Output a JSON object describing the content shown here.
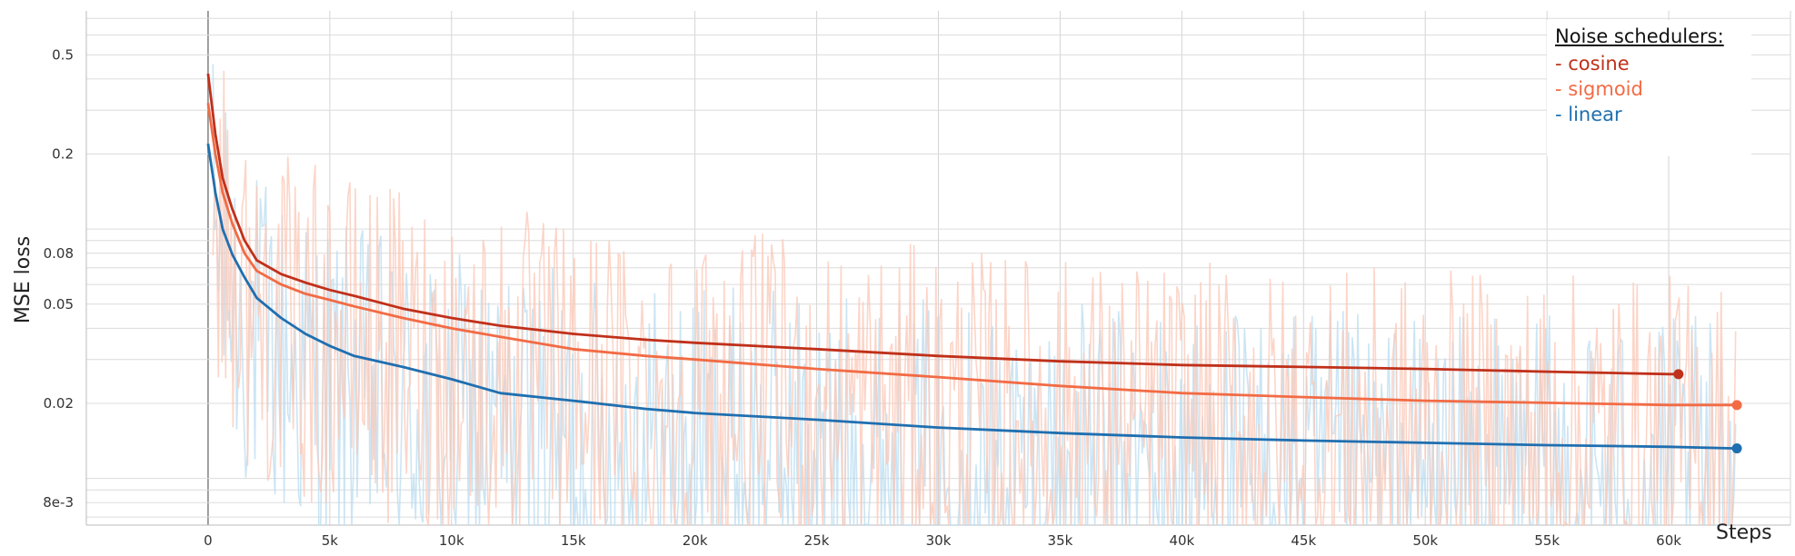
{
  "chart_data": {
    "type": "line",
    "xlabel": "Steps",
    "ylabel": "MSE loss",
    "x_scale": "linear",
    "y_scale": "log",
    "xlim": [
      -5000,
      65000
    ],
    "ylim": [
      0.0065,
      0.75
    ],
    "x_ticks": [
      0,
      5000,
      10000,
      15000,
      20000,
      25000,
      30000,
      35000,
      40000,
      45000,
      50000,
      55000,
      60000
    ],
    "x_tick_labels": [
      "0",
      "5k",
      "10k",
      "15k",
      "20k",
      "25k",
      "30k",
      "35k",
      "40k",
      "45k",
      "50k",
      "55k",
      "60k"
    ],
    "y_ticks": [
      0.5,
      0.2,
      0.08,
      0.05,
      0.02,
      0.008
    ],
    "y_tick_labels": [
      "0.5",
      "0.2",
      "0.08",
      "0.05",
      "0.02",
      "8e-3"
    ],
    "grid": true,
    "legend": {
      "title": "Noise schedulers:",
      "placement": "top-right",
      "items": [
        "- cosine",
        "- sigmoid",
        "- linear"
      ]
    },
    "series": [
      {
        "name": "cosine",
        "color": "#c0301a",
        "x": [
          0,
          300,
          600,
          1000,
          1500,
          2000,
          3000,
          4000,
          5000,
          6000,
          8000,
          10000,
          12000,
          15000,
          18000,
          20000,
          25000,
          30000,
          35000,
          40000,
          45000,
          50000,
          55000,
          60000,
          60400
        ],
        "y": [
          0.42,
          0.24,
          0.16,
          0.12,
          0.09,
          0.075,
          0.066,
          0.061,
          0.057,
          0.054,
          0.048,
          0.044,
          0.041,
          0.038,
          0.036,
          0.035,
          0.033,
          0.031,
          0.0295,
          0.0285,
          0.028,
          0.0275,
          0.0268,
          0.0262,
          0.0262
        ]
      },
      {
        "name": "sigmoid",
        "color": "#f26b45",
        "x": [
          0,
          300,
          600,
          1000,
          1500,
          2000,
          3000,
          4000,
          5000,
          6000,
          8000,
          10000,
          12000,
          15000,
          18000,
          20000,
          25000,
          30000,
          35000,
          40000,
          45000,
          50000,
          55000,
          60000,
          62800
        ],
        "y": [
          0.32,
          0.2,
          0.14,
          0.105,
          0.08,
          0.068,
          0.06,
          0.055,
          0.052,
          0.049,
          0.044,
          0.04,
          0.037,
          0.033,
          0.031,
          0.03,
          0.0275,
          0.0255,
          0.0235,
          0.022,
          0.0212,
          0.0205,
          0.0201,
          0.0197,
          0.0197
        ]
      },
      {
        "name": "linear",
        "color": "#1f6fb0",
        "x": [
          0,
          300,
          600,
          1000,
          1500,
          2000,
          3000,
          4000,
          5000,
          6000,
          8000,
          10000,
          12000,
          15000,
          18000,
          20000,
          25000,
          30000,
          35000,
          40000,
          45000,
          50000,
          55000,
          60000,
          62800
        ],
        "y": [
          0.22,
          0.14,
          0.1,
          0.079,
          0.064,
          0.053,
          0.044,
          0.038,
          0.034,
          0.031,
          0.028,
          0.025,
          0.022,
          0.0205,
          0.019,
          0.0183,
          0.0172,
          0.016,
          0.0152,
          0.0146,
          0.0142,
          0.0139,
          0.0136,
          0.0134,
          0.0132
        ]
      }
    ]
  }
}
